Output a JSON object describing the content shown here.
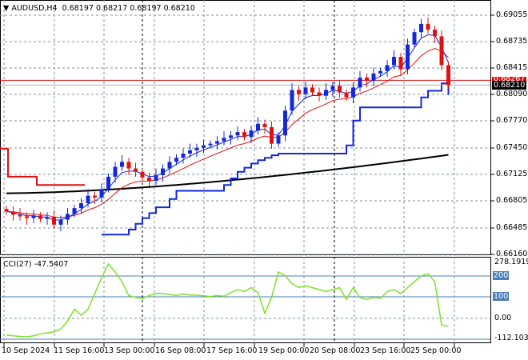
{
  "header": {
    "symbol_label": "AUDUSD,H4",
    "ohlc": "0.68197 0.68217 0.68197 0.68210"
  },
  "price_axis": {
    "ticks": [
      "0.69055",
      "0.68735",
      "0.68415",
      "0.68090",
      "0.67770",
      "0.67450",
      "0.67125",
      "0.66805",
      "0.66485",
      "0.66160"
    ],
    "ask_label": "0.68267",
    "bid_label": "0.68210"
  },
  "cci_pane": {
    "title": "CCI(27) -47.5407",
    "max_label": "278.1919",
    "min_label": "-112.1035",
    "levels": [
      "200",
      "100",
      "0.00"
    ]
  },
  "time_axis": {
    "labels": [
      "10 Sep 2024",
      "11 Sep 16:00",
      "13 Sep 00:00",
      "16 Sep 08:00",
      "17 Sep 16:00",
      "19 Sep 00:00",
      "20 Sep 08:00",
      "23 Sep 16:00",
      "25 Sep 00:00"
    ]
  },
  "colors": {
    "bull": "#1428d8",
    "bear": "#e01010",
    "ema": "#e01010",
    "ma_blue": "#1428d8",
    "ma200": "#000000",
    "cci": "#7ee02a",
    "ask": "#e01010"
  },
  "chart_data": {
    "type": "candlestick",
    "symbol": "AUDUSD",
    "timeframe": "H4",
    "ylim": [
      0.6616,
      0.69055
    ],
    "closes": [
      0.6668,
      0.6664,
      0.6662,
      0.666,
      0.6663,
      0.6659,
      0.6661,
      0.6652,
      0.6658,
      0.6665,
      0.6672,
      0.6678,
      0.6687,
      0.6685,
      0.6695,
      0.671,
      0.6722,
      0.6728,
      0.672,
      0.6716,
      0.6709,
      0.6705,
      0.6712,
      0.672,
      0.6728,
      0.6733,
      0.6738,
      0.6742,
      0.6745,
      0.6748,
      0.675,
      0.6753,
      0.6757,
      0.676,
      0.6764,
      0.6758,
      0.6766,
      0.6774,
      0.677,
      0.675,
      0.676,
      0.679,
      0.6815,
      0.681,
      0.6818,
      0.6812,
      0.6808,
      0.6815,
      0.682,
      0.6812,
      0.6806,
      0.6818,
      0.683,
      0.6826,
      0.6835,
      0.6838,
      0.6845,
      0.6855,
      0.684,
      0.687,
      0.6885,
      0.6895,
      0.6888,
      0.688,
      0.6845,
      0.6821
    ],
    "ma200": [
      0.669,
      0.67365
    ],
    "cci": [
      -90,
      -95,
      -98,
      -100,
      -95,
      -85,
      -80,
      -75,
      -60,
      -20,
      40,
      10,
      40,
      120,
      200,
      270,
      230,
      180,
      110,
      100,
      95,
      110,
      120,
      120,
      115,
      110,
      118,
      112,
      112,
      108,
      105,
      110,
      106,
      125,
      140,
      130,
      150,
      125,
      20,
      100,
      230,
      210,
      170,
      150,
      160,
      150,
      140,
      130,
      140,
      150,
      90,
      150,
      100,
      90,
      100,
      95,
      130,
      140,
      120,
      150,
      180,
      210,
      220,
      180,
      -40,
      -47.5
    ],
    "cci_ylim": [
      -112.1035,
      278.1919
    ]
  }
}
